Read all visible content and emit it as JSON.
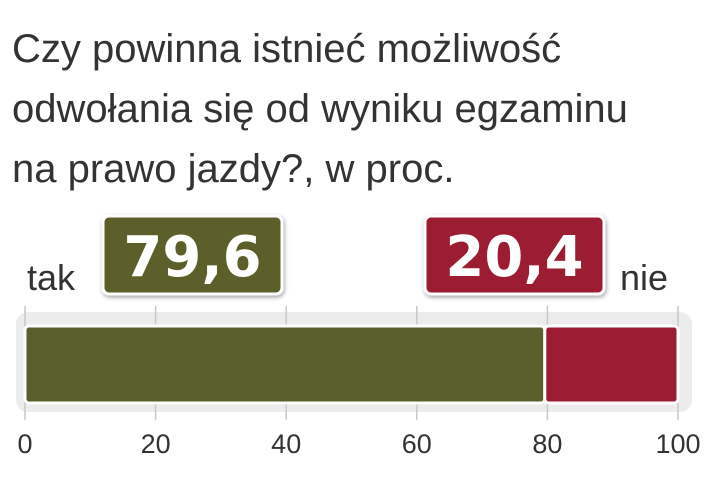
{
  "chart_data": {
    "type": "bar",
    "orientation": "horizontal",
    "stacked": true,
    "title": [
      "Czy powinna istnieć możliwość",
      "odwołania się od wyniku egzaminu",
      "na prawo jazdy?, w proc."
    ],
    "series": [
      {
        "name": "tak",
        "color": "#5b5f2b",
        "values": [
          79.6
        ],
        "value_labels": [
          "79,6"
        ]
      },
      {
        "name": "nie",
        "color": "#9c1d32",
        "values": [
          20.4
        ],
        "value_labels": [
          "20,4"
        ]
      }
    ],
    "xlim": [
      0,
      100
    ],
    "xticks": [
      0,
      20,
      40,
      60,
      80,
      100
    ],
    "grid": true
  }
}
